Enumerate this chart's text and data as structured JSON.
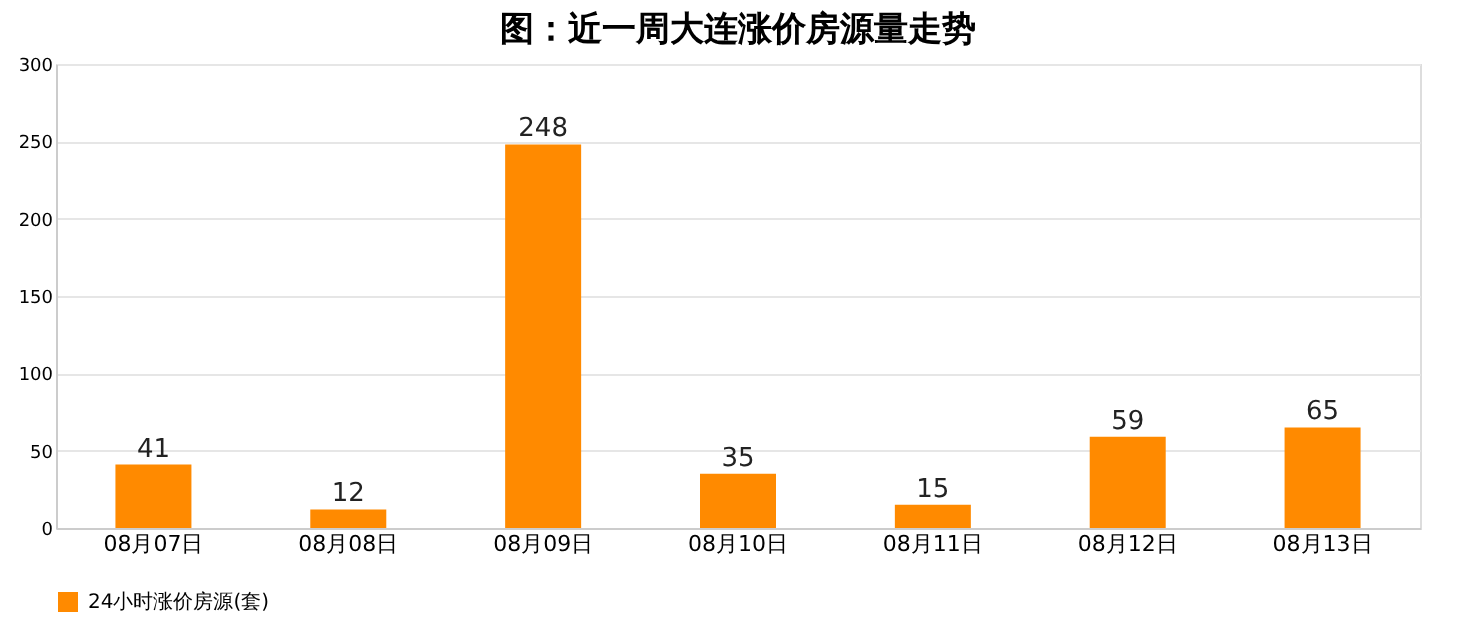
{
  "chart_data": {
    "type": "bar",
    "title": "图：近一周大连涨价房源量走势",
    "categories": [
      "08月07日",
      "08月08日",
      "08月09日",
      "08月10日",
      "08月11日",
      "08月12日",
      "08月13日"
    ],
    "series": [
      {
        "name": "24小时涨价房源(套)",
        "color": "#ff8a00",
        "values": [
          41,
          12,
          248,
          35,
          15,
          59,
          65
        ]
      }
    ],
    "ylim": [
      0,
      300
    ],
    "yticks": [
      0,
      50,
      100,
      150,
      200,
      250,
      300
    ],
    "grid": "y",
    "legend": "bottom",
    "data_labels": true
  }
}
